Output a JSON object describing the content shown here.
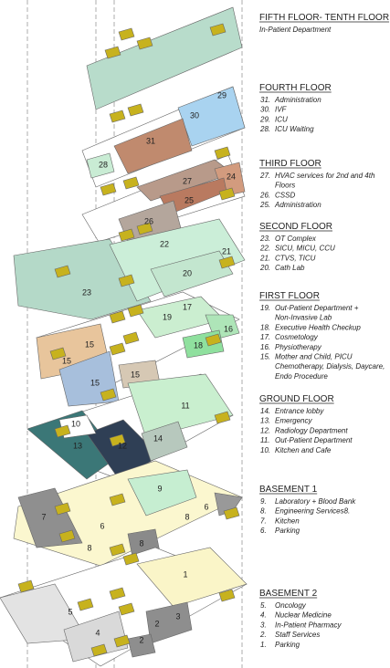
{
  "legend": [
    {
      "title": "FIFTH FLOOR- TENTH FLOOR",
      "subtitle": "In-Patient Department"
    },
    {
      "title": "FOURTH FLOOR",
      "items": [
        {
          "num": "31.",
          "text": [
            "Administration"
          ]
        },
        {
          "num": "30.",
          "text": [
            "IVF"
          ]
        },
        {
          "num": "29.",
          "text": [
            "ICU"
          ]
        },
        {
          "num": "28.",
          "text": [
            "ICU Waiting"
          ]
        }
      ]
    },
    {
      "title": "THIRD FLOOR",
      "items": [
        {
          "num": "27.",
          "text": [
            "HVAC services for 2nd and 4th",
            "Floors"
          ]
        },
        {
          "num": "26.",
          "text": [
            "CSSD"
          ]
        },
        {
          "num": "25.",
          "text": [
            "Administration"
          ]
        }
      ]
    },
    {
      "title": "SECOND FLOOR",
      "items": [
        {
          "num": "23.",
          "text": [
            "OT Complex"
          ]
        },
        {
          "num": "22.",
          "text": [
            "SICU, MICU, CCU"
          ]
        },
        {
          "num": "21.",
          "text": [
            "CTVS, TICU"
          ]
        },
        {
          "num": "20.",
          "text": [
            "Cath Lab"
          ]
        }
      ]
    },
    {
      "title": "FIRST FLOOR",
      "items": [
        {
          "num": "19.",
          "text": [
            "Out-Patient Department +",
            "Non-Invasive Lab"
          ]
        },
        {
          "num": "18.",
          "text": [
            "Executive Health Checkup"
          ]
        },
        {
          "num": "17.",
          "text": [
            "Cosmetology"
          ]
        },
        {
          "num": "16.",
          "text": [
            "Physiotherapy"
          ]
        },
        {
          "num": "15.",
          "text": [
            "Mother and Child, PICU",
            "Chemotherapy, Dialysis, Daycare,",
            "Endo Procedure"
          ]
        }
      ]
    },
    {
      "title": "GROUND FLOOR",
      "items": [
        {
          "num": "14.",
          "text": [
            "Entrance lobby"
          ]
        },
        {
          "num": "13.",
          "text": [
            "Emergency"
          ]
        },
        {
          "num": "12.",
          "text": [
            "Radiology Department"
          ]
        },
        {
          "num": "11.",
          "text": [
            "Out-Patient Department"
          ]
        },
        {
          "num": "10.",
          "text": [
            "Kitchen and Cafe"
          ]
        }
      ]
    },
    {
      "title": "BASEMENT 1",
      "items": [
        {
          "num": "9.",
          "text": [
            "Laboratory + Blood Bank"
          ]
        },
        {
          "num": "8.",
          "text": [
            "Engineering Services8."
          ]
        },
        {
          "num": "7.",
          "text": [
            "Kitchen"
          ]
        },
        {
          "num": "6.",
          "text": [
            "Parking"
          ]
        }
      ]
    },
    {
      "title": "BASEMENT 2",
      "items": [
        {
          "num": "5.",
          "text": [
            "Oncology"
          ]
        },
        {
          "num": "4.",
          "text": [
            "Nuclear Medicine"
          ]
        },
        {
          "num": "3.",
          "text": [
            "In-Patient Pharmacy"
          ]
        },
        {
          "num": "2.",
          "text": [
            "Staff Services"
          ]
        },
        {
          "num": "1.",
          "text": [
            "Parking"
          ]
        }
      ]
    }
  ],
  "plan_labels": [
    "29",
    "30",
    "31",
    "28",
    "27",
    "24",
    "25",
    "26",
    "22",
    "21",
    "20",
    "23",
    "19",
    "17",
    "16",
    "18",
    "15",
    "15",
    "15",
    "15",
    "11",
    "10",
    "13",
    "12",
    "14",
    "9",
    "6",
    "7",
    "6",
    "8",
    "8",
    "8",
    "1",
    "5",
    "3",
    "2",
    "4",
    "2"
  ]
}
